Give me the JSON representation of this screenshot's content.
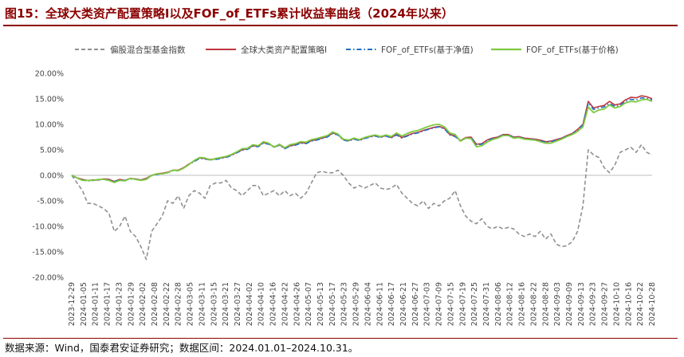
{
  "figure": {
    "title": "图15：全球大类资产配置策略I以及FOF_of_ETFs累计收益率曲线（2024年以来）",
    "source": "数据来源：Wind，国泰君安证券研究；数据区间：2024.01.01–2024.10.31。"
  },
  "colors": {
    "title": "#8B0000",
    "mixed_index": "#909090",
    "strategy": "#C0353F",
    "nav": "#1F6FC5",
    "price": "#7EC93F"
  },
  "chart_data": {
    "type": "line",
    "ylim": [
      -20,
      20
    ],
    "yticks": [
      "-20.00%",
      "-15.00%",
      "-10.00%",
      "-5.00%",
      "0.00%",
      "5.00%",
      "10.00%",
      "15.00%",
      "20.00%"
    ],
    "ytick_values": [
      -20,
      -15,
      -10,
      -5,
      0,
      5,
      10,
      15,
      20
    ],
    "xticks": [
      "2023-12-29",
      "2024-01-05",
      "2024-01-11",
      "2024-01-17",
      "2024-01-23",
      "2024-01-29",
      "2024-02-02",
      "2024-02-08",
      "2024-02-22",
      "2024-02-28",
      "2024-03-05",
      "2024-03-11",
      "2024-03-15",
      "2024-03-21",
      "2024-03-27",
      "2024-04-02",
      "2024-04-10",
      "2024-04-16",
      "2024-04-22",
      "2024-04-26",
      "2024-05-07",
      "2024-05-13",
      "2024-05-17",
      "2024-05-23",
      "2024-05-29",
      "2024-06-04",
      "2024-06-11",
      "2024-06-17",
      "2024-06-21",
      "2024-06-27",
      "2024-07-03",
      "2024-07-09",
      "2024-07-15",
      "2024-07-19",
      "2024-07-25",
      "2024-07-31",
      "2024-08-06",
      "2024-08-12",
      "2024-08-16",
      "2024-08-22",
      "2024-08-28",
      "2024-09-03",
      "2024-09-09",
      "2024-09-13",
      "2024-09-23",
      "2024-09-27",
      "2024-10-10",
      "2024-10-16",
      "2024-10-22",
      "2024-10-28"
    ],
    "legend": [
      "偏股混合型基金指数",
      "全球大类资产配置策略I",
      "FOF_of_ETFs(基于净值)",
      "FOF_of_ETFs(基于价格)"
    ],
    "series": [
      {
        "name": "偏股混合型基金指数",
        "style": "dashed",
        "values": [
          0,
          -1.5,
          -3,
          -5.5,
          -5.5,
          -6,
          -6.5,
          -7.5,
          -11,
          -10,
          -8,
          -11,
          -12,
          -14,
          -16.5,
          -11,
          -9.5,
          -8,
          -5,
          -5.5,
          -4,
          -6.5,
          -4,
          -3,
          -3.5,
          -4.5,
          -2,
          -1.5,
          -1.5,
          -1,
          -2.5,
          -3,
          -4,
          -3,
          -2,
          -2,
          -4,
          -3.5,
          -3,
          -4,
          -3,
          -4,
          -3.5,
          -4.5,
          -3.5,
          -1.5,
          0.5,
          0.8,
          0.5,
          0.5,
          1,
          0,
          -1.5,
          -2.5,
          -2,
          -2.5,
          -2,
          -1.5,
          -2.5,
          -2.8,
          -2.5,
          -1.8,
          -3.5,
          -4.5,
          -5.5,
          -6,
          -5,
          -6.5,
          -5.5,
          -6,
          -5,
          -4.5,
          -3,
          -6,
          -8,
          -9,
          -9.5,
          -8.5,
          -10,
          -10.5,
          -10,
          -10.5,
          -10.2,
          -10.5,
          -11.5,
          -12,
          -11.5,
          -12,
          -11,
          -12.5,
          -11.5,
          -13.5,
          -14,
          -13.8,
          -13,
          -11,
          -6,
          5,
          4,
          3.5,
          1.5,
          0.5,
          2,
          4.5,
          5,
          5.5,
          4.5,
          6,
          4.5,
          4
        ]
      },
      {
        "name": "全球大类资产配置策略I",
        "style": "solid",
        "values": [
          0,
          -0.5,
          -0.8,
          -1,
          -0.9,
          -0.9,
          -0.7,
          -0.8,
          -1.2,
          -0.8,
          -1,
          -0.6,
          -0.7,
          -0.9,
          -0.6,
          0,
          0.3,
          0.4,
          0.6,
          1,
          1,
          1.5,
          2.2,
          2.8,
          3.4,
          3.3,
          3.1,
          3.2,
          3.4,
          3.6,
          4,
          4.5,
          5,
          5.2,
          5.8,
          5.7,
          6.4,
          6.2,
          5.6,
          6,
          5.3,
          5.8,
          6,
          6.4,
          6.3,
          6.8,
          7,
          7.3,
          7.6,
          8.3,
          8,
          7,
          6.8,
          7.2,
          6.9,
          7.3,
          7.6,
          7.8,
          7.5,
          7.8,
          7.4,
          8,
          7.4,
          7.8,
          8.2,
          8.4,
          8.8,
          9.1,
          9.4,
          9.6,
          9.2,
          8,
          7.7,
          6.8,
          7.4,
          7.5,
          6.1,
          6.2,
          6.9,
          7.3,
          7.5,
          8,
          8,
          7.5,
          7.6,
          7.3,
          7.2,
          7.1,
          6.9,
          6.6,
          6.7,
          7,
          7.3,
          7.8,
          8.2,
          9,
          10,
          14.5,
          13.2,
          13.5,
          13.7,
          14.5,
          13.8,
          14,
          14.8,
          15.3,
          15.2,
          15.6,
          15.4,
          15
        ]
      },
      {
        "name": "FOF_of_ETFs(基于净值)",
        "style": "dashdot",
        "values": [
          0,
          -0.6,
          -0.9,
          -1.1,
          -1,
          -0.9,
          -0.8,
          -0.9,
          -1.2,
          -0.9,
          -1,
          -0.7,
          -0.8,
          -0.9,
          -0.7,
          -0.1,
          0.2,
          0.3,
          0.5,
          0.9,
          0.9,
          1.4,
          2.1,
          2.7,
          3.3,
          3.2,
          3,
          3.1,
          3.3,
          3.5,
          3.9,
          4.4,
          4.9,
          5.1,
          5.7,
          5.6,
          6.3,
          6.1,
          5.5,
          5.9,
          5.2,
          5.7,
          5.9,
          6.3,
          6.2,
          6.7,
          6.9,
          7.2,
          7.5,
          8.2,
          7.9,
          6.9,
          6.7,
          7.1,
          6.8,
          7.2,
          7.5,
          7.7,
          7.4,
          7.7,
          7.3,
          7.9,
          7.3,
          7.7,
          8.1,
          8.3,
          8.7,
          9,
          9.3,
          9.5,
          9.1,
          7.9,
          7.6,
          6.7,
          7.3,
          7.4,
          6,
          6.1,
          6.8,
          7.2,
          7.4,
          7.9,
          7.9,
          7.4,
          7.5,
          7.2,
          7.1,
          7,
          6.8,
          6.5,
          6.6,
          6.9,
          7.2,
          7.7,
          8.1,
          8.9,
          9.9,
          14.2,
          12.9,
          13.2,
          13.4,
          14.1,
          13.5,
          13.7,
          14.5,
          14.9,
          14.8,
          15.2,
          15.1,
          14.8
        ]
      },
      {
        "name": "FOF_of_ETFs(基于价格)",
        "style": "solid",
        "values": [
          0,
          -0.5,
          -1,
          -1,
          -1,
          -0.8,
          -0.8,
          -1,
          -1.4,
          -1,
          -1.1,
          -0.6,
          -0.8,
          -1,
          -0.8,
          0,
          0.3,
          0.3,
          0.5,
          1,
          0.9,
          1.4,
          2.1,
          2.9,
          3.5,
          3.4,
          3,
          3.3,
          3.5,
          3.7,
          4.1,
          4.6,
          5.2,
          5.3,
          6,
          5.8,
          6.6,
          6.3,
          5.5,
          6.1,
          5.4,
          6,
          6.2,
          6.6,
          6.5,
          7,
          7.2,
          7.5,
          7.8,
          8.5,
          8.1,
          7.1,
          6.9,
          7.3,
          7,
          7.4,
          7.7,
          7.9,
          7.6,
          7.9,
          7.6,
          8.3,
          7.7,
          8.2,
          8.6,
          8.8,
          9.2,
          9.6,
          9.9,
          10,
          9.5,
          8.3,
          8,
          6.7,
          7.3,
          7.2,
          5.6,
          5.8,
          6.5,
          7,
          7.3,
          7.8,
          7.8,
          7.3,
          7.4,
          7.1,
          7,
          6.9,
          6.6,
          6.3,
          6.3,
          6.7,
          7.1,
          7.6,
          8,
          8.6,
          9.5,
          13.4,
          12.3,
          12.8,
          13,
          13.8,
          13.2,
          13.5,
          14.2,
          14.5,
          14.4,
          14.8,
          14.9,
          14.5
        ]
      }
    ]
  }
}
